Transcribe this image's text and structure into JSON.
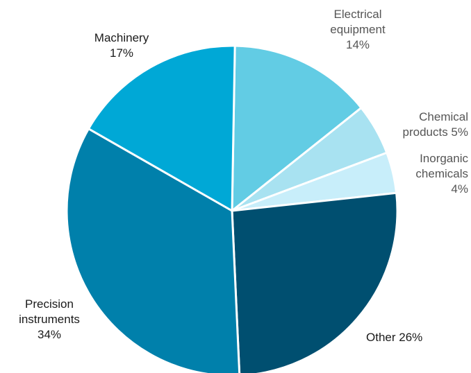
{
  "chart_data": {
    "type": "pie",
    "title": "",
    "slices": [
      {
        "label": "Electrical equipment",
        "value": 14,
        "color": "#62cce4"
      },
      {
        "label": "Chemical products",
        "value": 5,
        "color": "#a8e2f1"
      },
      {
        "label": "Inorganic chemicals",
        "value": 4,
        "color": "#c8eefa"
      },
      {
        "label": "Other",
        "value": 26,
        "color": "#004f70"
      },
      {
        "label": "Precision instruments",
        "value": 34,
        "color": "#0080ab"
      },
      {
        "label": "Machinery",
        "value": 17,
        "color": "#00a8d6"
      }
    ],
    "labels": {
      "electrical": {
        "line1": "Electrical",
        "line2": "equipment",
        "line3": "14%"
      },
      "chemical": {
        "line1": "Chemical",
        "line2": "products 5%"
      },
      "inorganic": {
        "line1": "Inorganic",
        "line2": "chemicals",
        "line3": "4%"
      },
      "other": {
        "line1": "Other 26%"
      },
      "precision": {
        "line1": "Precision",
        "line2": "instruments",
        "line3": "34%"
      },
      "machinery": {
        "line1": "Machinery",
        "line2": "17%"
      }
    }
  }
}
